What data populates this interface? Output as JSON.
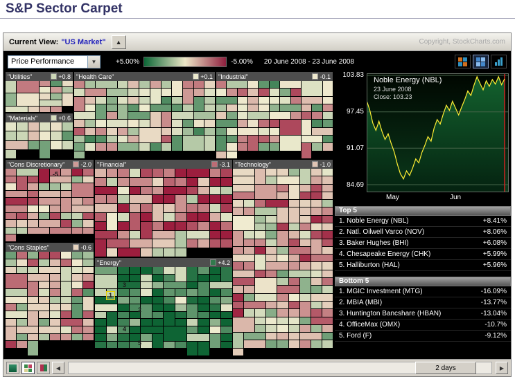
{
  "page": {
    "title": "S&P Sector Carpet"
  },
  "widget": {
    "header": {
      "view_label": "Current View:",
      "view_value": "\"US Market\"",
      "copyright": "Copyright, StockCharts.com"
    },
    "toolbar": {
      "mode": "Price Performance",
      "scale_max_label": "+5.00%",
      "scale_min_label": "-5.00%",
      "date_range": "20 June 2008 - 23 June 2008"
    }
  },
  "carpet": {
    "sectors": [
      {
        "id": "utilities",
        "label": "\"Utilities\"",
        "value": "+0.8",
        "num": 0.8
      },
      {
        "id": "health-care",
        "label": "\"Health Care\"",
        "value": "+0.1",
        "num": 0.1
      },
      {
        "id": "industrial",
        "label": "\"Industrial\"",
        "value": "-0.1",
        "num": -0.1
      },
      {
        "id": "materials",
        "label": "\"Materials\"",
        "value": "+0.6",
        "num": 0.6
      },
      {
        "id": "cons-discretionary",
        "label": "\"Cons Discretionary\"",
        "value": "-2.0",
        "num": -2.0
      },
      {
        "id": "financial",
        "label": "\"Financial\"",
        "value": "-3.1",
        "num": -3.1
      },
      {
        "id": "technology",
        "label": "\"Technology\"",
        "value": "-1.0",
        "num": -1.0
      },
      {
        "id": "cons-staples",
        "label": "\"Cons Staples\"",
        "value": "-0.6",
        "num": -0.6
      },
      {
        "id": "energy",
        "label": "\"Energy\"",
        "value": "+4.2",
        "num": 4.2
      }
    ],
    "annotations": {
      "discretionary_cell": "-5",
      "energy_cells": [
        "3",
        "1",
        "2",
        "4",
        "5"
      ]
    }
  },
  "chart_data": {
    "type": "line",
    "title": "Noble Energy (NBL)",
    "date": "23 June 2008",
    "close_label": "Close: 103.23",
    "close": 103.23,
    "ylim": [
      84.69,
      103.83
    ],
    "y_ticks": [
      103.83,
      97.45,
      91.07,
      84.69
    ],
    "y_tick_labels": [
      "103.83",
      "97.45",
      "91.07",
      "84.69"
    ],
    "x_tick_labels": [
      "May",
      "Jun"
    ],
    "line_color": "#ffee33",
    "cursor_color": "#cc2222",
    "series": [
      99.4,
      97.8,
      95.5,
      94.2,
      95.8,
      94.0,
      92.6,
      93.6,
      91.9,
      90.4,
      88.3,
      86.6,
      85.7,
      87.1,
      86.3,
      87.6,
      89.2,
      88.5,
      90.3,
      91.6,
      93.1,
      92.3,
      94.6,
      96.1,
      95.3,
      97.1,
      98.6,
      97.7,
      99.3,
      98.1,
      96.9,
      98.3,
      99.6,
      101.1,
      100.3,
      102.1,
      103.6,
      102.4,
      101.3,
      102.9,
      101.9,
      103.1,
      102.3,
      103.6,
      102.2,
      103.23
    ]
  },
  "top5": {
    "title": "Top 5",
    "rows": [
      {
        "label": "1. Noble Energy (NBL)",
        "value": "+8.41%"
      },
      {
        "label": "2. Natl. Oilwell Varco (NOV)",
        "value": "+8.06%"
      },
      {
        "label": "3. Baker Hughes (BHI)",
        "value": "+6.08%"
      },
      {
        "label": "4. Chesapeake Energy (CHK)",
        "value": "+5.99%"
      },
      {
        "label": "5. Halliburton (HAL)",
        "value": "+5.96%"
      }
    ]
  },
  "bottom5": {
    "title": "Bottom 5",
    "rows": [
      {
        "label": "1. MGIC Investment (MTG)",
        "value": "-16.09%"
      },
      {
        "label": "2. MBIA (MBI)",
        "value": "-13.77%"
      },
      {
        "label": "3. Huntington Bancshare (HBAN)",
        "value": "-13.04%"
      },
      {
        "label": "4. OfficeMax (OMX)",
        "value": "-10.7%"
      },
      {
        "label": "5. Ford (F)",
        "value": "-9.12%"
      }
    ]
  },
  "footer": {
    "range_button": "2 days"
  },
  "colors": {
    "positive": "#0e6436",
    "negative": "#9c1e3e",
    "neutral": "#f0ecd0",
    "accent_line": "#ffee33",
    "title": "#333366"
  }
}
